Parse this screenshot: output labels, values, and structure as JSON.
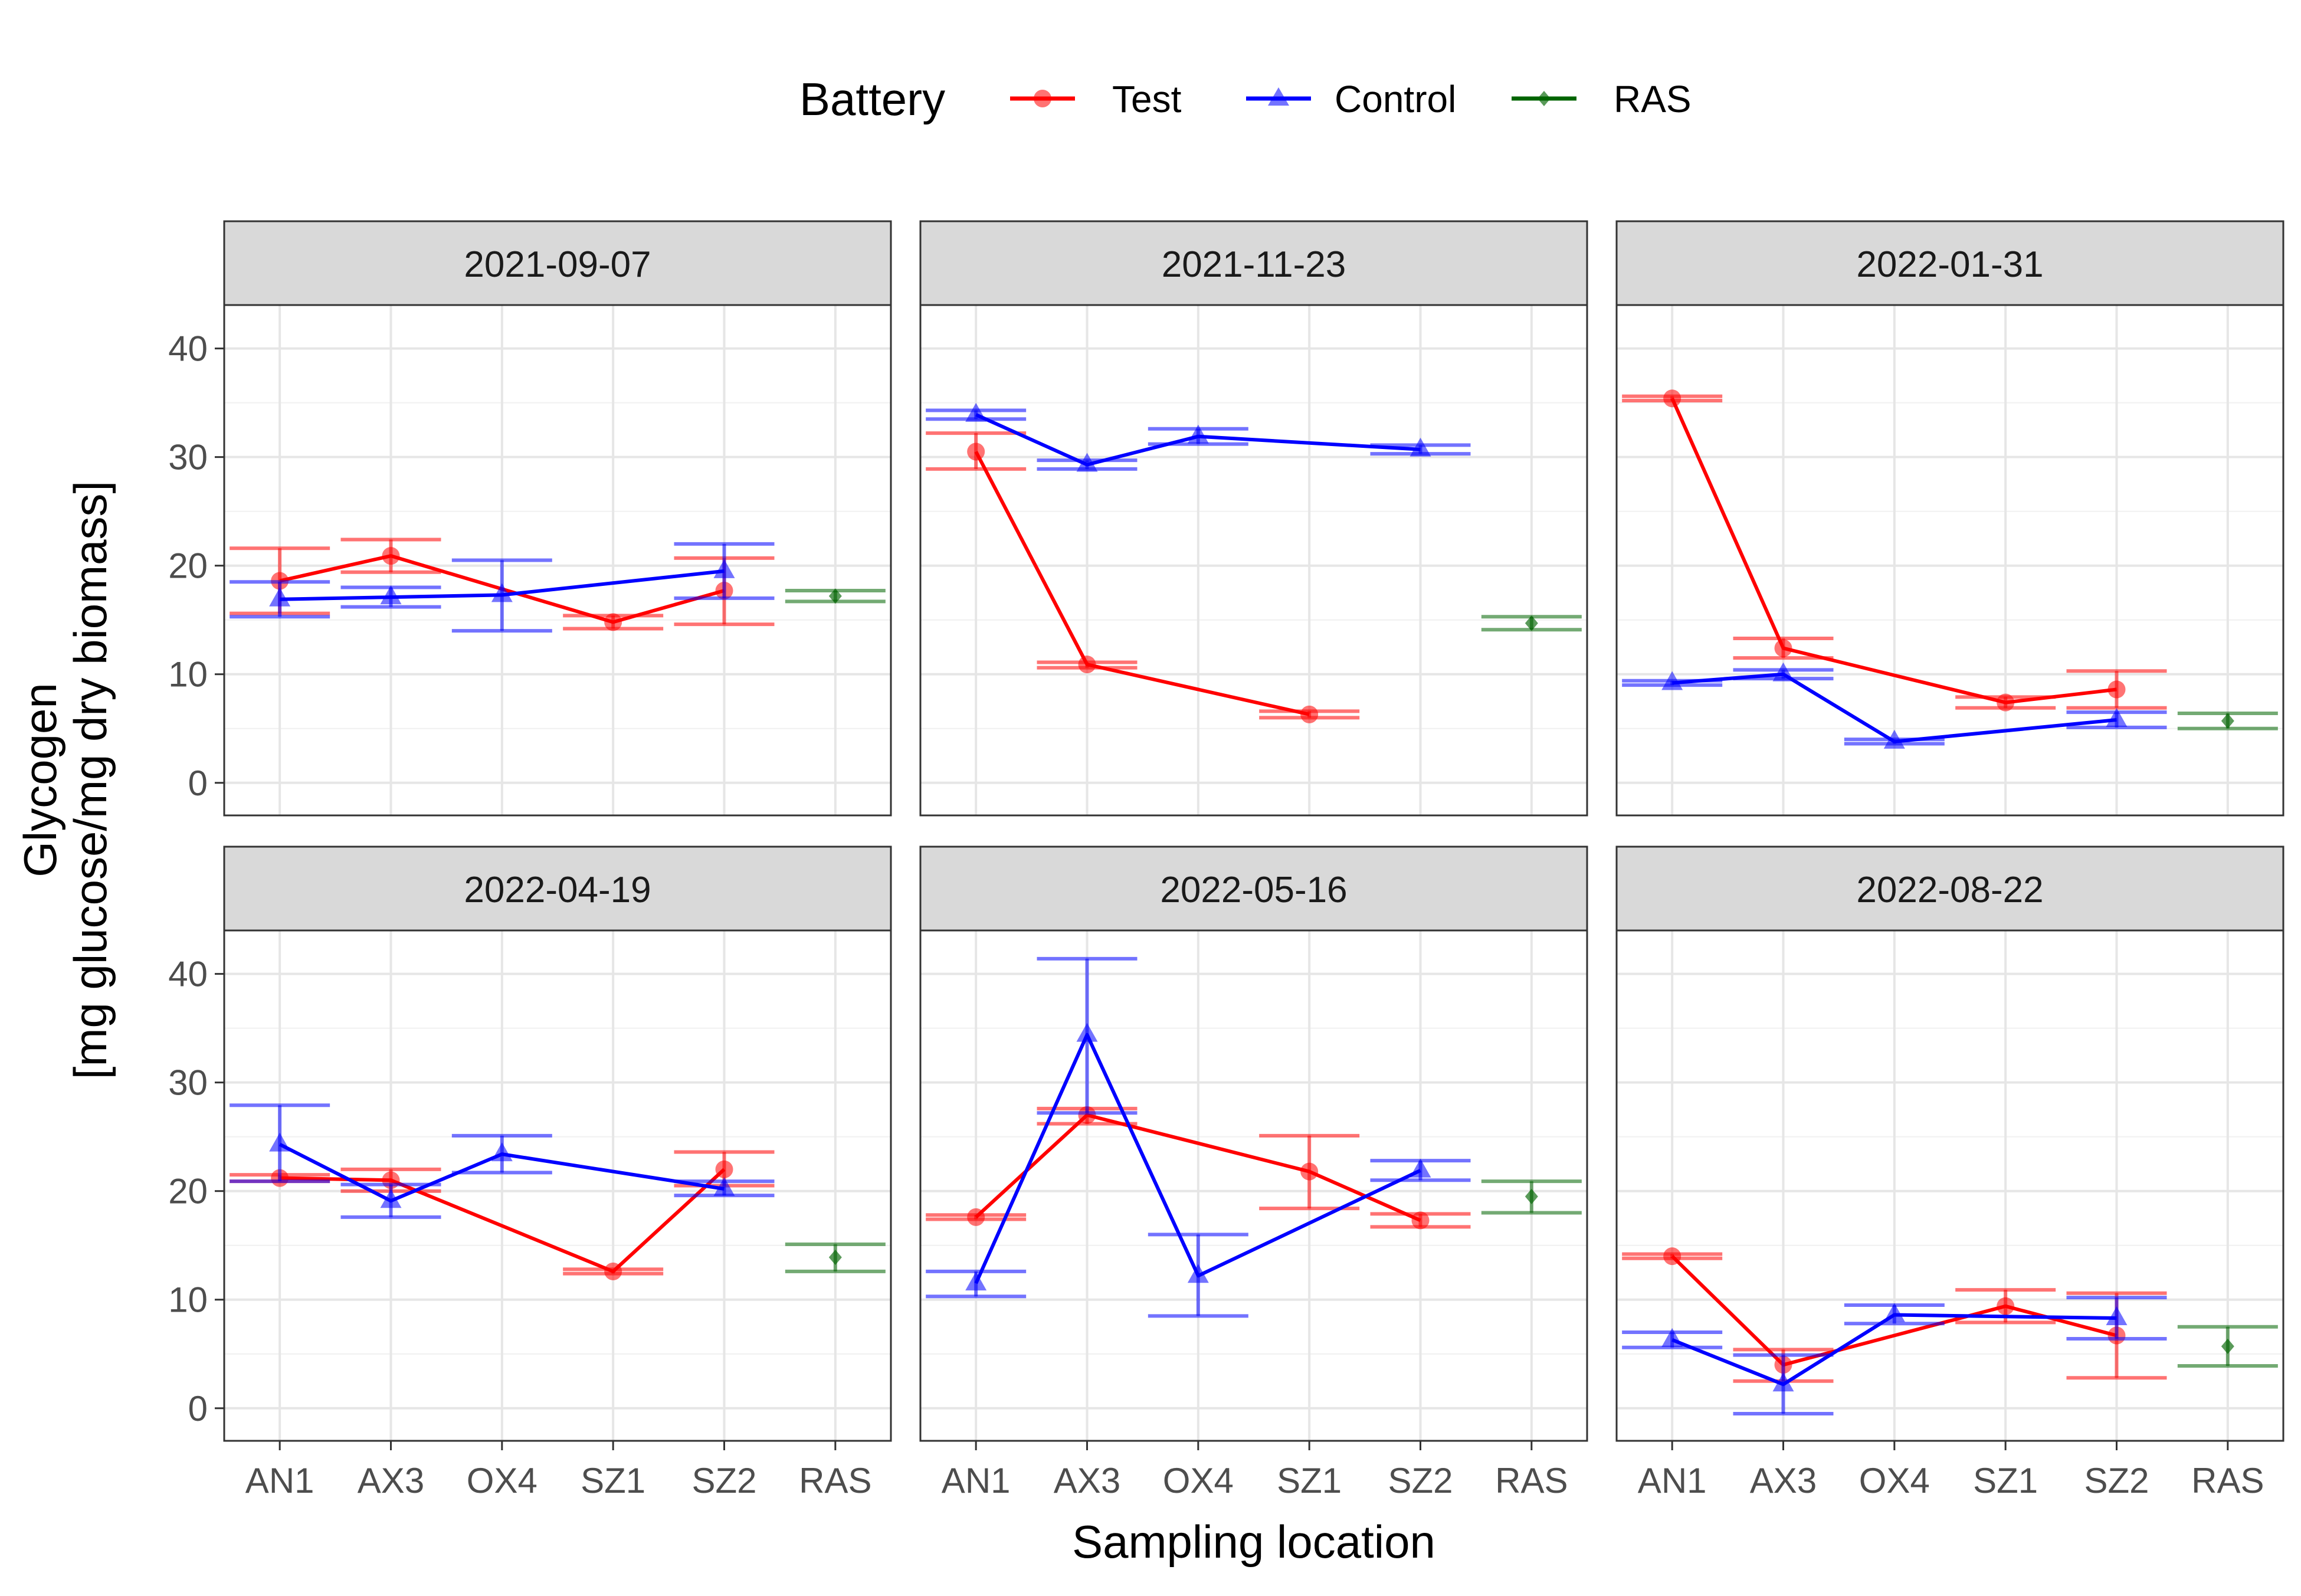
{
  "chart_data": {
    "type": "line",
    "facet_titles": [
      "2021-09-07",
      "2021-11-23",
      "2022-01-31",
      "2022-04-19",
      "2022-05-16",
      "2022-08-22"
    ],
    "categories": [
      "AN1",
      "AX3",
      "OX4",
      "SZ1",
      "SZ2",
      "RAS"
    ],
    "xlabel": "Sampling location",
    "ylabel": [
      "Glycogen",
      "[mg glucose/mg dry biomass]"
    ],
    "ylim": [
      -3,
      44
    ],
    "yticks": [
      0,
      10,
      20,
      30,
      40
    ],
    "grid": true,
    "legend": {
      "title": "Battery",
      "position": "top",
      "entries": [
        {
          "label": "Test",
          "color": "#ff0000",
          "marker": "circle"
        },
        {
          "label": "Control",
          "color": "#0000ff",
          "marker": "triangle"
        },
        {
          "label": "RAS",
          "color": "#006400",
          "marker": "diamond"
        }
      ]
    },
    "facets": [
      {
        "title": "2021-09-07",
        "series": [
          {
            "name": "Test",
            "points": [
              {
                "x": "AN1",
                "y": 18.6,
                "lo": 15.6,
                "hi": 21.6
              },
              {
                "x": "AX3",
                "y": 20.9,
                "lo": 19.4,
                "hi": 22.4
              },
              {
                "x": "SZ1",
                "y": 14.8,
                "lo": 14.2,
                "hi": 15.4
              },
              {
                "x": "SZ2",
                "y": 17.7,
                "lo": 14.6,
                "hi": 20.7
              }
            ]
          },
          {
            "name": "Control",
            "points": [
              {
                "x": "AN1",
                "y": 16.9,
                "lo": 15.3,
                "hi": 18.5
              },
              {
                "x": "AX3",
                "y": 17.1,
                "lo": 16.2,
                "hi": 18.0
              },
              {
                "x": "OX4",
                "y": 17.3,
                "lo": 14.0,
                "hi": 20.5
              },
              {
                "x": "SZ2",
                "y": 19.5,
                "lo": 17.0,
                "hi": 22.0
              }
            ]
          },
          {
            "name": "RAS",
            "points": [
              {
                "x": "RAS",
                "y": 17.2,
                "lo": 16.7,
                "hi": 17.7
              }
            ]
          }
        ]
      },
      {
        "title": "2021-11-23",
        "series": [
          {
            "name": "Test",
            "points": [
              {
                "x": "AN1",
                "y": 30.5,
                "lo": 28.9,
                "hi": 32.2
              },
              {
                "x": "AX3",
                "y": 10.9,
                "lo": 10.6,
                "hi": 11.1
              },
              {
                "x": "SZ1",
                "y": 6.3,
                "lo": 6.0,
                "hi": 6.6
              }
            ]
          },
          {
            "name": "Control",
            "points": [
              {
                "x": "AN1",
                "y": 33.9,
                "lo": 33.5,
                "hi": 34.3
              },
              {
                "x": "AX3",
                "y": 29.3,
                "lo": 28.9,
                "hi": 29.7
              },
              {
                "x": "OX4",
                "y": 31.9,
                "lo": 31.2,
                "hi": 32.6
              },
              {
                "x": "SZ2",
                "y": 30.7,
                "lo": 30.3,
                "hi": 31.1
              }
            ]
          },
          {
            "name": "RAS",
            "points": [
              {
                "x": "RAS",
                "y": 14.7,
                "lo": 14.1,
                "hi": 15.3
              }
            ]
          }
        ]
      },
      {
        "title": "2022-01-31",
        "series": [
          {
            "name": "Test",
            "points": [
              {
                "x": "AN1",
                "y": 35.4,
                "lo": 35.2,
                "hi": 35.6
              },
              {
                "x": "AX3",
                "y": 12.4,
                "lo": 11.5,
                "hi": 13.3
              },
              {
                "x": "SZ1",
                "y": 7.4,
                "lo": 6.9,
                "hi": 7.9
              },
              {
                "x": "SZ2",
                "y": 8.6,
                "lo": 6.9,
                "hi": 10.3
              }
            ]
          },
          {
            "name": "Control",
            "points": [
              {
                "x": "AN1",
                "y": 9.2,
                "lo": 9.0,
                "hi": 9.4
              },
              {
                "x": "AX3",
                "y": 10.0,
                "lo": 9.6,
                "hi": 10.4
              },
              {
                "x": "OX4",
                "y": 3.8,
                "lo": 3.6,
                "hi": 4.0
              },
              {
                "x": "SZ2",
                "y": 5.8,
                "lo": 5.1,
                "hi": 6.5
              }
            ]
          },
          {
            "name": "RAS",
            "points": [
              {
                "x": "RAS",
                "y": 5.7,
                "lo": 5.0,
                "hi": 6.4
              }
            ]
          }
        ]
      },
      {
        "title": "2022-04-19",
        "series": [
          {
            "name": "Test",
            "points": [
              {
                "x": "AN1",
                "y": 21.2,
                "lo": 20.9,
                "hi": 21.5
              },
              {
                "x": "AX3",
                "y": 21.0,
                "lo": 20.0,
                "hi": 22.0
              },
              {
                "x": "SZ1",
                "y": 12.6,
                "lo": 12.4,
                "hi": 12.8
              },
              {
                "x": "SZ2",
                "y": 22.0,
                "lo": 20.5,
                "hi": 23.6
              }
            ]
          },
          {
            "name": "Control",
            "points": [
              {
                "x": "AN1",
                "y": 24.3,
                "lo": 20.9,
                "hi": 27.9
              },
              {
                "x": "AX3",
                "y": 19.1,
                "lo": 17.6,
                "hi": 20.6
              },
              {
                "x": "OX4",
                "y": 23.4,
                "lo": 21.7,
                "hi": 25.1
              },
              {
                "x": "SZ2",
                "y": 20.2,
                "lo": 19.6,
                "hi": 20.9
              }
            ]
          },
          {
            "name": "RAS",
            "points": [
              {
                "x": "RAS",
                "y": 13.9,
                "lo": 12.6,
                "hi": 15.1
              }
            ]
          }
        ]
      },
      {
        "title": "2022-05-16",
        "series": [
          {
            "name": "Test",
            "points": [
              {
                "x": "AN1",
                "y": 17.6,
                "lo": 17.4,
                "hi": 17.8
              },
              {
                "x": "AX3",
                "y": 27.0,
                "lo": 26.2,
                "hi": 27.6
              },
              {
                "x": "SZ1",
                "y": 21.8,
                "lo": 18.4,
                "hi": 25.1
              },
              {
                "x": "SZ2",
                "y": 17.3,
                "lo": 16.7,
                "hi": 17.9
              }
            ]
          },
          {
            "name": "Control",
            "points": [
              {
                "x": "AN1",
                "y": 11.5,
                "lo": 10.3,
                "hi": 12.6
              },
              {
                "x": "AX3",
                "y": 34.4,
                "lo": 27.2,
                "hi": 41.4
              },
              {
                "x": "OX4",
                "y": 12.2,
                "lo": 8.5,
                "hi": 16.0
              },
              {
                "x": "SZ2",
                "y": 21.9,
                "lo": 21.0,
                "hi": 22.8
              }
            ]
          },
          {
            "name": "RAS",
            "points": [
              {
                "x": "RAS",
                "y": 19.5,
                "lo": 18.0,
                "hi": 20.9
              }
            ]
          }
        ]
      },
      {
        "title": "2022-08-22",
        "series": [
          {
            "name": "Test",
            "points": [
              {
                "x": "AN1",
                "y": 14.0,
                "lo": 13.8,
                "hi": 14.2
              },
              {
                "x": "AX3",
                "y": 4.0,
                "lo": 2.5,
                "hi": 5.4
              },
              {
                "x": "SZ1",
                "y": 9.4,
                "lo": 7.9,
                "hi": 10.9
              },
              {
                "x": "SZ2",
                "y": 6.7,
                "lo": 2.8,
                "hi": 10.6
              }
            ]
          },
          {
            "name": "Control",
            "points": [
              {
                "x": "AN1",
                "y": 6.3,
                "lo": 5.6,
                "hi": 7.0
              },
              {
                "x": "AX3",
                "y": 2.2,
                "lo": -0.5,
                "hi": 4.9
              },
              {
                "x": "OX4",
                "y": 8.6,
                "lo": 7.8,
                "hi": 9.5
              },
              {
                "x": "SZ2",
                "y": 8.3,
                "lo": 6.4,
                "hi": 10.2
              }
            ]
          },
          {
            "name": "RAS",
            "points": [
              {
                "x": "RAS",
                "y": 5.7,
                "lo": 3.9,
                "hi": 7.5
              }
            ]
          }
        ]
      }
    ]
  }
}
